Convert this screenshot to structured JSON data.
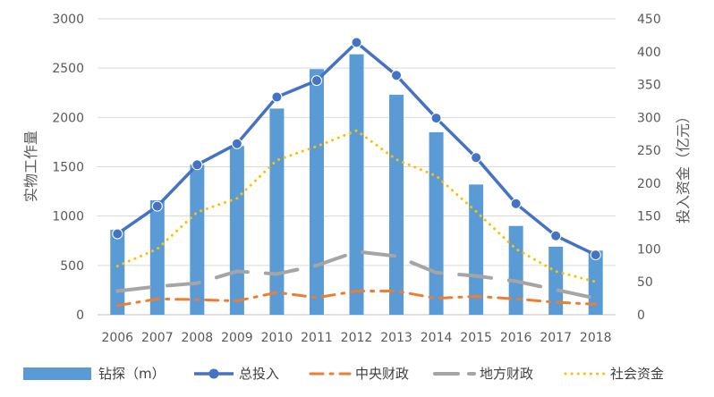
{
  "chart_data": {
    "type": "bar+line",
    "categories": [
      "2006",
      "2007",
      "2008",
      "2009",
      "2010",
      "2011",
      "2012",
      "2013",
      "2014",
      "2015",
      "2016",
      "2017",
      "2018"
    ],
    "y_left": {
      "label": "实物工作量",
      "range": [
        0,
        3000
      ],
      "ticks": [
        "0",
        "500",
        "1000",
        "1500",
        "2000",
        "2500",
        "3000"
      ]
    },
    "y_right": {
      "label": "投入资金（亿元）",
      "range": [
        0,
        450
      ],
      "ticks": [
        "0",
        "50",
        "100",
        "150",
        "200",
        "250",
        "300",
        "350",
        "400",
        "450"
      ]
    },
    "grid": true,
    "legend_position": "bottom",
    "series": [
      {
        "name": "钻探（m）",
        "type": "bar",
        "axis": "left",
        "color": "#5B9BD5",
        "values": [
          860,
          1160,
          1520,
          1710,
          2090,
          2490,
          2640,
          2230,
          1850,
          1320,
          900,
          690,
          650
        ]
      },
      {
        "name": "总投入",
        "type": "line-marker",
        "axis": "right",
        "color": "#4472C4",
        "values": [
          123,
          165,
          228,
          260,
          331,
          356,
          414,
          364,
          299,
          239,
          169,
          120,
          91
        ]
      },
      {
        "name": "中央财政",
        "type": "line-dashdot",
        "axis": "right",
        "color": "#ED7D31",
        "values": [
          14,
          24,
          23,
          21,
          34,
          26,
          36,
          36,
          25,
          28,
          24,
          19,
          16
        ]
      },
      {
        "name": "地方财政",
        "type": "line-longdash",
        "axis": "right",
        "color": "#A5A5A5",
        "values": [
          36,
          43,
          48,
          66,
          62,
          75,
          96,
          89,
          64,
          59,
          51,
          38,
          25
        ]
      },
      {
        "name": "社会资金",
        "type": "line-dotted",
        "axis": "right",
        "color": "#FFC000",
        "values": [
          74,
          100,
          156,
          177,
          235,
          256,
          280,
          236,
          211,
          157,
          100,
          66,
          50
        ]
      }
    ]
  }
}
